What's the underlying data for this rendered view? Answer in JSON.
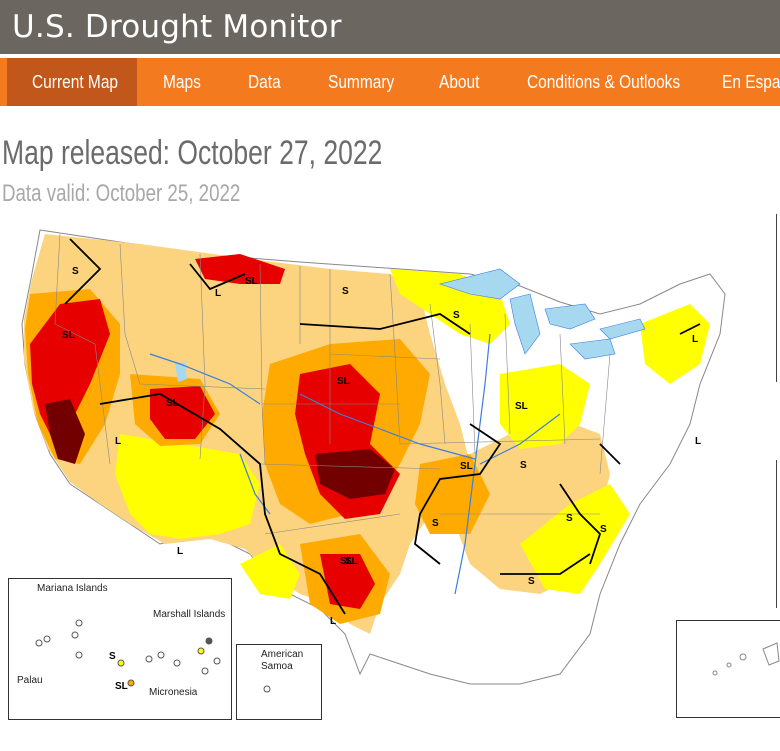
{
  "header": {
    "site_title": "U.S. Drought Monitor"
  },
  "nav": {
    "items": [
      {
        "label": "Current Map"
      },
      {
        "label": "Maps"
      },
      {
        "label": "Data"
      },
      {
        "label": "Summary"
      },
      {
        "label": "About"
      },
      {
        "label": "Conditions & Outlooks"
      },
      {
        "label": "En Españ"
      }
    ],
    "active_index": 0
  },
  "page": {
    "released": "Map released: October 27, 2022",
    "valid": "Data valid: October 25, 2022"
  },
  "colors": {
    "header_bg": "#6b6660",
    "nav_bg": "#f47a20",
    "nav_active_bg": "#c2571c",
    "D0": "#ffff00",
    "D1": "#fcd37f",
    "D2": "#ffaa00",
    "D3": "#e60000",
    "D4": "#730000",
    "water": "#a6d9f0",
    "rivers": "#3c7ee0"
  },
  "map": {
    "impact_labels": [
      "S",
      "SL",
      "L",
      "SL",
      "S",
      "SL",
      "L",
      "SL",
      "SL",
      "L",
      "S",
      "L",
      "SL",
      "S",
      "SL",
      "S",
      "S",
      "SL",
      "L",
      "S",
      "L",
      "S"
    ],
    "insets": {
      "pacific": {
        "labels": [
          "Mariana Islands",
          "Marshall Islands",
          "Palau",
          "Micronesia"
        ],
        "codes": [
          "S",
          "SL"
        ]
      },
      "samoa": {
        "labels": [
          "American Samoa"
        ]
      }
    }
  }
}
